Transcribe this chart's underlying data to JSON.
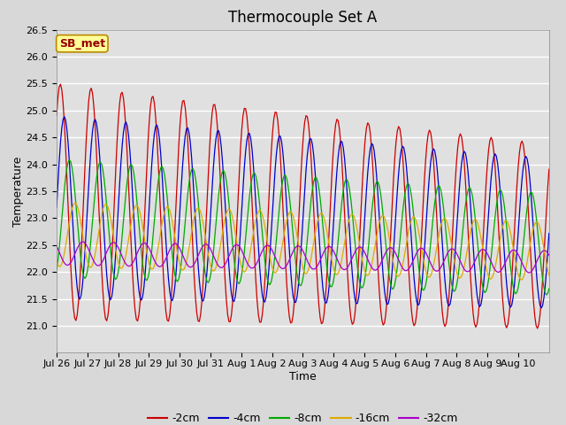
{
  "title": "Thermocouple Set A",
  "xlabel": "Time",
  "ylabel": "Temperature",
  "ylim": [
    20.5,
    26.5
  ],
  "yticks": [
    21.0,
    21.5,
    22.0,
    22.5,
    23.0,
    23.5,
    24.0,
    24.5,
    25.0,
    25.5,
    26.0,
    26.5
  ],
  "colors": {
    "-2cm": "#cc0000",
    "-4cm": "#0000cc",
    "-8cm": "#00aa00",
    "-16cm": "#ddaa00",
    "-32cm": "#aa00cc"
  },
  "annotation_text": "SB_met",
  "annotation_bg": "#ffff99",
  "annotation_border": "#bb8800",
  "n_days": 16,
  "background_color": "#e0e0e0",
  "grid_color": "#ffffff",
  "title_fontsize": 12,
  "label_fontsize": 9,
  "tick_fontsize": 8,
  "legend_fontsize": 9,
  "series_params": {
    "-2cm": {
      "amp": 2.2,
      "amp_decay": 0.25,
      "phase": -0.13,
      "mean": 23.3,
      "mean_slope": -0.04
    },
    "-4cm": {
      "amp": 1.7,
      "amp_decay": 0.2,
      "phase": 0.0,
      "mean": 23.2,
      "mean_slope": -0.03
    },
    "-8cm": {
      "amp": 1.1,
      "amp_decay": 0.15,
      "phase": 0.17,
      "mean": 23.0,
      "mean_slope": -0.03
    },
    "-16cm": {
      "amp": 0.6,
      "amp_decay": 0.1,
      "phase": 0.35,
      "mean": 22.7,
      "mean_slope": -0.02
    },
    "-32cm": {
      "amp": 0.22,
      "amp_decay": 0.05,
      "phase": 0.6,
      "mean": 22.35,
      "mean_slope": -0.01
    }
  }
}
